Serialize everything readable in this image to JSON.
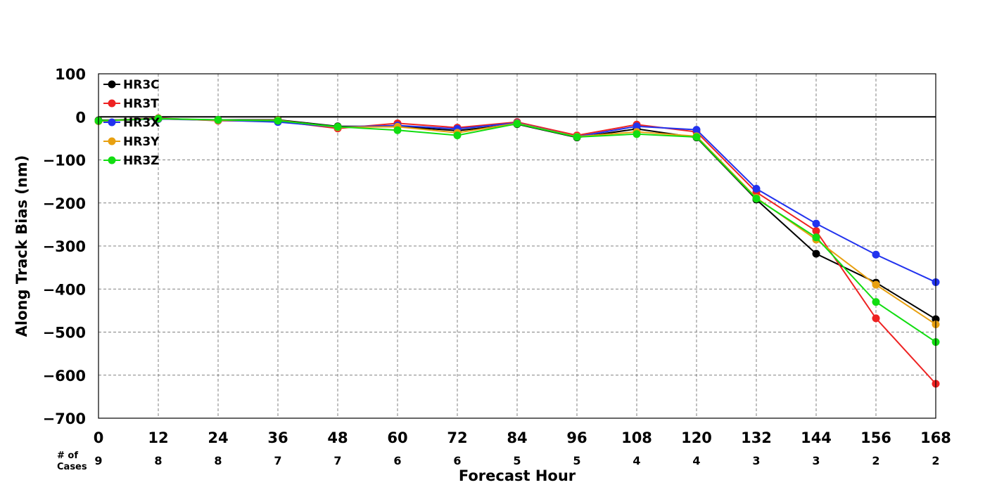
{
  "chart_data": {
    "type": "line",
    "xlabel": "Forecast Hour",
    "ylabel": "Along Track Bias (nm)",
    "ylim": [
      -700,
      100
    ],
    "xlim": [
      0,
      168
    ],
    "x": [
      0,
      12,
      24,
      36,
      48,
      60,
      72,
      84,
      96,
      108,
      120,
      132,
      144,
      156,
      168
    ],
    "yticks": [
      100,
      0,
      -100,
      -200,
      -300,
      -400,
      -500,
      -600,
      -700
    ],
    "grid": true,
    "zero_line": true,
    "legend_position": "top-left",
    "cases_title": "# of\nCases",
    "cases": [
      9,
      8,
      8,
      7,
      7,
      6,
      6,
      5,
      5,
      4,
      4,
      3,
      3,
      2,
      2
    ],
    "series": [
      {
        "name": "HR3C",
        "color": "#000000",
        "values": [
          -8,
          -5,
          -7,
          -7,
          -22,
          -22,
          -32,
          -17,
          -48,
          -28,
          -48,
          -192,
          -318,
          -385,
          -470
        ]
      },
      {
        "name": "HR3T",
        "color": "#ee2222",
        "values": [
          -9,
          -3,
          -9,
          -10,
          -27,
          -15,
          -25,
          -12,
          -43,
          -18,
          -35,
          -175,
          -265,
          -468,
          -620
        ]
      },
      {
        "name": "HR3X",
        "color": "#2233ee",
        "values": [
          -10,
          -5,
          -8,
          -12,
          -24,
          -20,
          -28,
          -14,
          -46,
          -22,
          -30,
          -167,
          -248,
          -320,
          -384
        ]
      },
      {
        "name": "HR3Y",
        "color": "#e8a010",
        "values": [
          -10,
          -4,
          -8,
          -8,
          -24,
          -23,
          -37,
          -15,
          -46,
          -35,
          -45,
          -188,
          -285,
          -390,
          -482
        ]
      },
      {
        "name": "HR3Z",
        "color": "#11dd11",
        "values": [
          -9,
          -4,
          -7,
          -9,
          -23,
          -31,
          -43,
          -16,
          -47,
          -40,
          -47,
          -190,
          -280,
          -430,
          -523
        ]
      }
    ]
  }
}
